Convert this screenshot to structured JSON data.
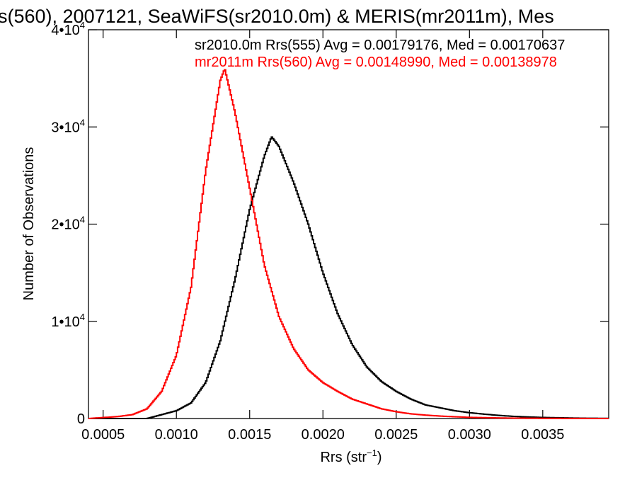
{
  "chart_data": {
    "type": "line",
    "title": "s(560), 2007121, SeaWiFS(sr2010.0m) & MERIS(mr2011m), Mes",
    "xlabel_main": "Rrs (str",
    "xlabel_sup": "−1",
    "xlabel_close": ")",
    "ylabel": "Number of Observations",
    "xlim": [
      0.0004,
      0.00395
    ],
    "ylim": [
      0,
      40000
    ],
    "x_ticks": [
      {
        "value": 0.0005,
        "label": "0.0005"
      },
      {
        "value": 0.001,
        "label": "0.0010"
      },
      {
        "value": 0.0015,
        "label": "0.0015"
      },
      {
        "value": 0.002,
        "label": "0.0020"
      },
      {
        "value": 0.0025,
        "label": "0.0025"
      },
      {
        "value": 0.003,
        "label": "0.0030"
      },
      {
        "value": 0.0035,
        "label": "0.0035"
      }
    ],
    "y_ticks": [
      {
        "value": 0,
        "label": "0",
        "sup": ""
      },
      {
        "value": 10000,
        "label": "1•10",
        "sup": "4"
      },
      {
        "value": 20000,
        "label": "2•10",
        "sup": "4"
      },
      {
        "value": 30000,
        "label": "3•10",
        "sup": "4"
      },
      {
        "value": 40000,
        "label": "4•10",
        "sup": "4"
      }
    ],
    "series": [
      {
        "label": "sr2010.0m Rrs(555) Avg = 0.00179176, Med = 0.00170637",
        "color": "#000000",
        "x": [
          0.0008,
          0.0009,
          0.001,
          0.0011,
          0.0012,
          0.0013,
          0.0014,
          0.0015,
          0.0016,
          0.00165,
          0.0017,
          0.0018,
          0.0019,
          0.002,
          0.0021,
          0.0022,
          0.0023,
          0.0024,
          0.0025,
          0.0026,
          0.0027,
          0.0028,
          0.0029,
          0.003,
          0.0031,
          0.0032,
          0.0033,
          0.0034,
          0.0035,
          0.0036,
          0.0037,
          0.0038,
          0.0039
        ],
        "y": [
          0,
          400,
          800,
          1600,
          3700,
          8000,
          14300,
          21500,
          27000,
          29000,
          28000,
          24300,
          20000,
          15000,
          10800,
          7600,
          5300,
          3800,
          2800,
          2000,
          1400,
          1100,
          800,
          600,
          450,
          320,
          220,
          160,
          110,
          80,
          50,
          30,
          20
        ]
      },
      {
        "label": "mr2011m Rrs(560) Avg = 0.00148990, Med = 0.00138978",
        "color": "#ff0000",
        "x": [
          0.0004,
          0.0006,
          0.0007,
          0.0008,
          0.0009,
          0.001,
          0.0011,
          0.0012,
          0.0013,
          0.00133,
          0.0014,
          0.0015,
          0.0016,
          0.0017,
          0.0018,
          0.0019,
          0.002,
          0.0021,
          0.0022,
          0.0023,
          0.0024,
          0.0025,
          0.0026,
          0.0027,
          0.0028,
          0.0029,
          0.003,
          0.0031,
          0.0032,
          0.0033,
          0.0034,
          0.0035,
          0.0036,
          0.0037,
          0.0038,
          0.0039
        ],
        "y": [
          0,
          200,
          400,
          1000,
          2800,
          6500,
          13500,
          25500,
          34800,
          36000,
          31500,
          23700,
          15800,
          10500,
          7200,
          5000,
          3700,
          2800,
          2000,
          1500,
          1000,
          700,
          480,
          350,
          250,
          180,
          120,
          90,
          60,
          40,
          30,
          20,
          15,
          10,
          5,
          0
        ]
      }
    ]
  }
}
